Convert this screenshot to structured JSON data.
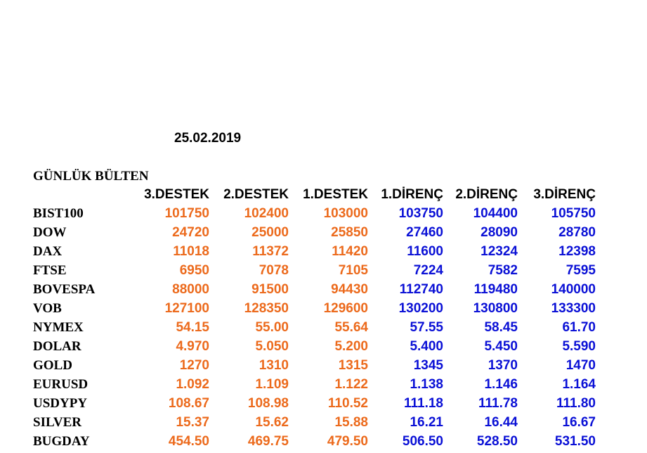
{
  "date": "25.02.2019",
  "title": "GÜNLÜK BÜLTEN",
  "headers": [
    "3.DESTEK",
    "2.DESTEK",
    "1.DESTEK",
    "1.DİRENÇ",
    "2.DİRENÇ",
    "3.DİRENÇ"
  ],
  "colors": {
    "support": "#ec6a1c",
    "resistance": "#0a10d6",
    "label": "#000000"
  },
  "rows": [
    {
      "name": "BIST100",
      "values": [
        "101750",
        "102400",
        "103000",
        "103750",
        "104400",
        "105750"
      ]
    },
    {
      "name": "DOW",
      "values": [
        "24720",
        "25000",
        "25850",
        "27460",
        "28090",
        "28780"
      ]
    },
    {
      "name": "DAX",
      "values": [
        "11018",
        "11372",
        "11420",
        "11600",
        "12324",
        "12398"
      ]
    },
    {
      "name": "FTSE",
      "values": [
        "6950",
        "7078",
        "7105",
        "7224",
        "7582",
        "7595"
      ]
    },
    {
      "name": "BOVESPA",
      "values": [
        "88000",
        "91500",
        "94430",
        "112740",
        "119480",
        "140000"
      ]
    },
    {
      "name": "VOB",
      "values": [
        "127100",
        "128350",
        "129600",
        "130200",
        "130800",
        "133300"
      ]
    },
    {
      "name": "NYMEX",
      "values": [
        "54.15",
        "55.00",
        "55.64",
        "57.55",
        "58.45",
        "61.70"
      ]
    },
    {
      "name": "DOLAR",
      "values": [
        "4.970",
        "5.050",
        "5.200",
        "5.400",
        "5.450",
        "5.590"
      ]
    },
    {
      "name": "GOLD",
      "values": [
        "1270",
        "1310",
        "1315",
        "1345",
        "1370",
        "1470"
      ]
    },
    {
      "name": "EURUSD",
      "values": [
        "1.092",
        "1.109",
        "1.122",
        "1.138",
        "1.146",
        "1.164"
      ]
    },
    {
      "name": "USDYPY",
      "values": [
        "108.67",
        "108.98",
        "110.52",
        "111.18",
        "111.78",
        "111.80"
      ]
    },
    {
      "name": "SILVER",
      "values": [
        "15.37",
        "15.62",
        "15.88",
        "16.21",
        "16.44",
        "16.67"
      ]
    },
    {
      "name": "BUGDAY",
      "values": [
        "454.50",
        "469.75",
        "479.50",
        "506.50",
        "528.50",
        "531.50"
      ]
    }
  ]
}
